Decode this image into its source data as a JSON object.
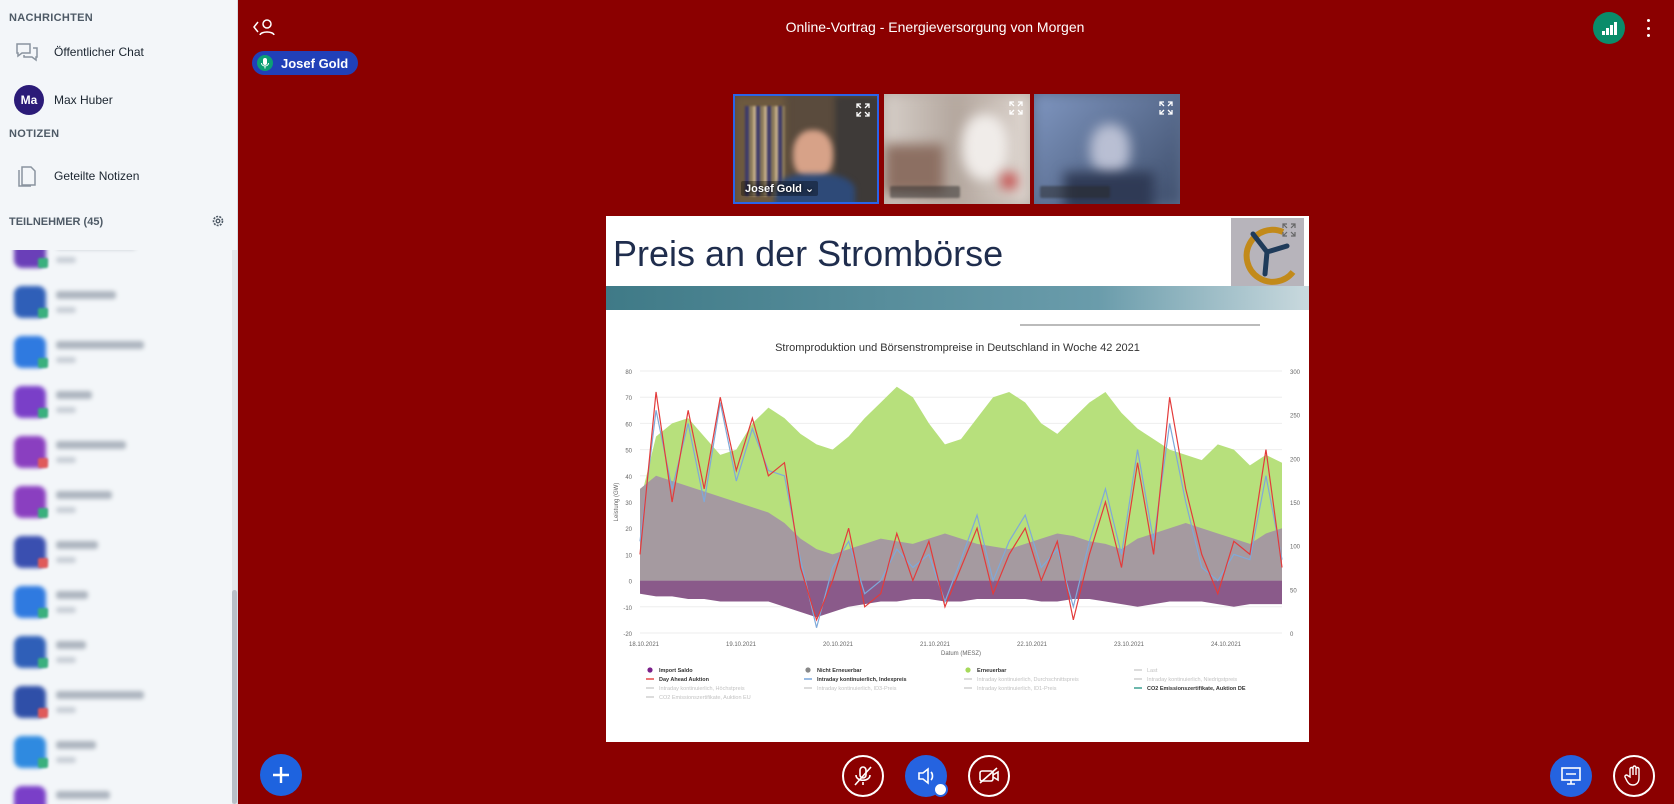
{
  "sidebar": {
    "messages_heading": "NACHRICHTEN",
    "public_chat": "Öffentlicher Chat",
    "private_chat": {
      "initials": "Ma",
      "name": "Max Huber"
    },
    "notes_heading": "NOTIZEN",
    "shared_notes": "Geteilte Notizen",
    "participants_heading": "TEILNEHMER (45)",
    "participants": [
      {
        "color": "#6a3fb8",
        "badge": "#3ab07d",
        "w": 80
      },
      {
        "color": "#2f5fb8",
        "badge": "#3ab07d",
        "w": 60
      },
      {
        "color": "#2f7ae0",
        "badge": "#3ab07d",
        "w": 88
      },
      {
        "color": "#7a3fc8",
        "badge": "#3ab07d",
        "w": 36
      },
      {
        "color": "#8a3fc0",
        "badge": "#e05a5a",
        "w": 70
      },
      {
        "color": "#8a3fc0",
        "badge": "#3ab07d",
        "w": 56
      },
      {
        "color": "#3a4fb0",
        "badge": "#e05a5a",
        "w": 42
      },
      {
        "color": "#2f7ae0",
        "badge": "#3ab07d",
        "w": 32
      },
      {
        "color": "#2f5fb8",
        "badge": "#3ab07d",
        "w": 30
      },
      {
        "color": "#2f4fa8",
        "badge": "#e05a5a",
        "w": 88
      },
      {
        "color": "#2f8ae0",
        "badge": "#3ab07d",
        "w": 40
      },
      {
        "color": "#7a3fc8",
        "badge": "#3ab07d",
        "w": 54
      }
    ]
  },
  "header": {
    "title": "Online-Vortrag - Energieversorgung von Morgen",
    "talker": "Josef Gold"
  },
  "videos": [
    {
      "label": "Josef Gold ⌄"
    },
    {
      "label": ""
    },
    {
      "label": ""
    }
  ],
  "slide": {
    "title": "Preis an der Strombörse"
  },
  "chart_data": {
    "type": "area",
    "title": "Stromproduktion und Börsenstrompreise in Deutschland in Woche 42 2021",
    "ylabel": "Leistung (GW)",
    "xlabel": "Datum (MESZ)",
    "ylim": [
      -20,
      80
    ],
    "yticks": [
      "80",
      "70",
      "60",
      "50",
      "40",
      "30",
      "20",
      "10",
      "0",
      "-10",
      "-20"
    ],
    "y2ticks": [
      "300",
      "250",
      "200",
      "150",
      "100",
      "50",
      "0"
    ],
    "xticks": [
      "18.10.2021",
      "19.10.2021",
      "20.10.2021",
      "21.10.2021",
      "22.10.2021",
      "23.10.2021",
      "24.10.2021"
    ],
    "legend": [
      {
        "name": "Import Saldo",
        "color": "#7a1f8a",
        "type": "dot"
      },
      {
        "name": "Nicht Erneuerbar",
        "color": "#888888",
        "type": "dot"
      },
      {
        "name": "Erneuerbar",
        "color": "#a6d95a",
        "type": "dot"
      },
      {
        "name": "Last",
        "color": "#cccccc",
        "type": "line"
      },
      {
        "name": "Day Ahead Auktion",
        "color": "#e33b3b",
        "type": "line"
      },
      {
        "name": "Intraday kontinuierlich, Indexpreis",
        "color": "#6f9fd8",
        "type": "line"
      },
      {
        "name": "Intraday kontinuierlich, Durchschnittspreis",
        "color": "#cccccc",
        "type": "line"
      },
      {
        "name": "Intraday kontinuierlich, Niedrigstpreis",
        "color": "#cccccc",
        "type": "line"
      },
      {
        "name": "Intraday kontinuierlich, Höchstpreis",
        "color": "#cccccc",
        "type": "line"
      },
      {
        "name": "Intraday kontinuierlich, ID3-Preis",
        "color": "#cccccc",
        "type": "line"
      },
      {
        "name": "Intraday kontinuierlich, ID1-Preis",
        "color": "#cccccc",
        "type": "line"
      },
      {
        "name": "CO2 Emissionszertifikate, Auktion DE",
        "color": "#2f9a8a",
        "type": "line"
      },
      {
        "name": "CO2 Emissionszertifikate, Auktion EU",
        "color": "#cccccc",
        "type": "line"
      }
    ],
    "series": [
      {
        "name": "Erneuerbar",
        "color": "#b7e07c",
        "values": [
          30,
          55,
          60,
          62,
          55,
          48,
          50,
          60,
          66,
          62,
          56,
          52,
          50,
          55,
          62,
          68,
          74,
          70,
          60,
          52,
          54,
          62,
          70,
          72,
          68,
          60,
          56,
          62,
          68,
          72,
          64,
          58,
          54,
          50,
          48,
          46,
          52,
          50,
          44,
          48,
          45
        ]
      },
      {
        "name": "Nicht Erneuerbar",
        "color": "#a59aa0",
        "values": [
          35,
          40,
          38,
          36,
          34,
          32,
          30,
          28,
          26,
          22,
          16,
          12,
          10,
          12,
          14,
          16,
          15,
          14,
          16,
          18,
          16,
          14,
          13,
          12,
          14,
          16,
          18,
          17,
          15,
          14,
          12,
          16,
          18,
          20,
          22,
          20,
          18,
          16,
          14,
          18,
          20
        ]
      },
      {
        "name": "Import Saldo",
        "color": "#8a5a8a",
        "values": [
          -5,
          -6,
          -6,
          -7,
          -7,
          -8,
          -8,
          -8,
          -8,
          -10,
          -12,
          -14,
          -12,
          -10,
          -9,
          -8,
          -8,
          -7,
          -7,
          -8,
          -8,
          -7,
          -7,
          -7,
          -7,
          -8,
          -8,
          -7,
          -7,
          -8,
          -9,
          -10,
          -9,
          -8,
          -8,
          -8,
          -9,
          -10,
          -9,
          -9,
          -9
        ]
      },
      {
        "name": "Day Ahead Auktion",
        "color": "#e33b3b",
        "values": [
          10,
          72,
          30,
          65,
          35,
          70,
          42,
          62,
          40,
          45,
          5,
          -15,
          0,
          20,
          -10,
          -5,
          18,
          0,
          15,
          -10,
          5,
          20,
          -5,
          10,
          20,
          0,
          15,
          -15,
          10,
          30,
          5,
          45,
          10,
          70,
          35,
          10,
          -5,
          15,
          10,
          50,
          5
        ]
      },
      {
        "name": "Intraday kontinuierlich, Indexpreis",
        "color": "#7fa9d9",
        "values": [
          15,
          65,
          35,
          60,
          30,
          68,
          38,
          58,
          42,
          40,
          8,
          -18,
          5,
          15,
          -5,
          0,
          12,
          5,
          10,
          -8,
          8,
          25,
          0,
          15,
          25,
          5,
          12,
          -10,
          15,
          35,
          10,
          50,
          15,
          60,
          30,
          5,
          0,
          10,
          8,
          40,
          8
        ]
      }
    ]
  },
  "controls": {
    "actions": "plus-icon",
    "mic": "mic-off-icon",
    "audio": "speaker-icon",
    "camera": "camera-off-icon",
    "presentation": "presentation-icon",
    "raise_hand": "hand-icon"
  },
  "colors": {
    "background": "#8b0000",
    "accent": "#2563e0",
    "sidebar": "#f3f6f9",
    "connection": "#0a8c6a"
  }
}
